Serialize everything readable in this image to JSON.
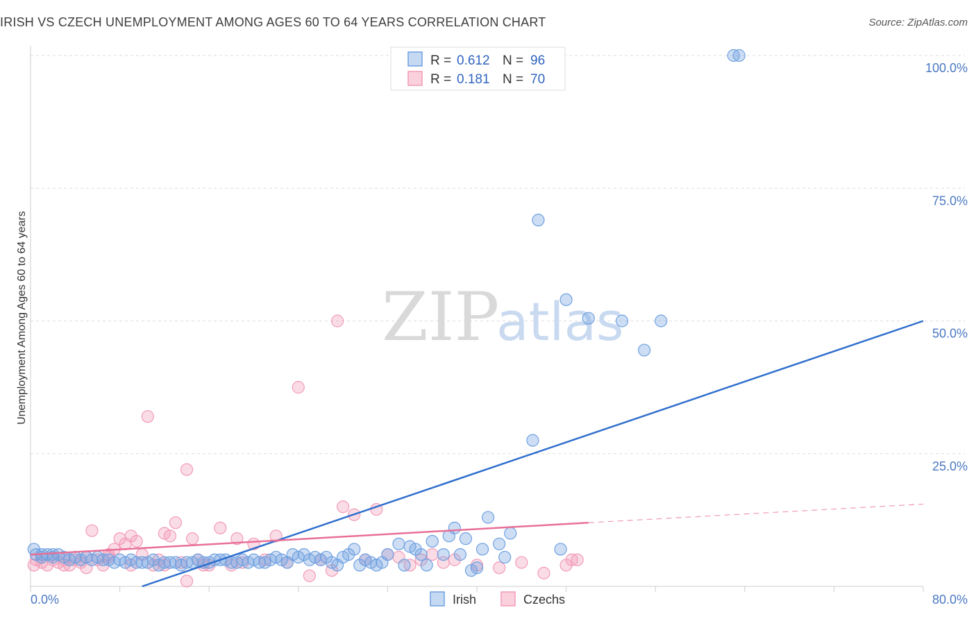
{
  "header": {
    "title": "IRISH VS CZECH UNEMPLOYMENT AMONG AGES 60 TO 64 YEARS CORRELATION CHART",
    "source": "Source: ZipAtlas.com"
  },
  "watermark": {
    "zip": "ZIP",
    "atlas": "atlas"
  },
  "colors": {
    "irish": "#6fa0e0",
    "irish_line": "#2f6fcd",
    "czech": "#f29bb6",
    "czech_line": "#e86f97",
    "axis_text": "#4a78c2"
  },
  "legend": {
    "irish": {
      "r_label": "R =",
      "r_value": "0.612",
      "n_label": "N =",
      "n_value": "96"
    },
    "czech": {
      "r_label": "R =",
      "r_value": "0.181",
      "n_label": "N =",
      "n_value": "70"
    }
  },
  "chart_data": {
    "type": "scatter",
    "title": "IRISH VS CZECH UNEMPLOYMENT AMONG AGES 60 TO 64 YEARS CORRELATION CHART",
    "xlabel": "",
    "ylabel": "Unemployment Among Ages 60 to 64 years",
    "xlim": [
      0,
      80
    ],
    "ylim": [
      0,
      100
    ],
    "x_tick_labels": [
      "0.0%",
      "80.0%"
    ],
    "y_tick_labels": [
      "25.0%",
      "50.0%",
      "75.0%",
      "100.0%"
    ],
    "y_ticks": [
      25,
      50,
      75,
      100
    ],
    "grid": true,
    "legend_position": "top-center",
    "series": [
      {
        "name": "Irish",
        "r": 0.612,
        "n": 96,
        "trend": {
          "x": [
            10,
            80
          ],
          "y": [
            0,
            50
          ]
        },
        "points": [
          [
            0.3,
            7
          ],
          [
            0.5,
            6
          ],
          [
            1,
            6
          ],
          [
            1.5,
            6
          ],
          [
            2,
            5.5
          ],
          [
            2.5,
            6
          ],
          [
            3,
            5.5
          ],
          [
            3.5,
            5
          ],
          [
            4,
            5.5
          ],
          [
            4.5,
            5
          ],
          [
            5,
            5.5
          ],
          [
            5.5,
            5
          ],
          [
            6,
            5.5
          ],
          [
            6.5,
            5
          ],
          [
            7,
            5
          ],
          [
            7.5,
            4.5
          ],
          [
            8,
            5
          ],
          [
            8.5,
            4.5
          ],
          [
            9,
            5
          ],
          [
            9.5,
            4.5
          ],
          [
            10,
            4.5
          ],
          [
            10.5,
            4.5
          ],
          [
            11,
            5
          ],
          [
            11.5,
            4
          ],
          [
            12,
            4.5
          ],
          [
            12.5,
            4.5
          ],
          [
            13,
            4.5
          ],
          [
            13.5,
            4
          ],
          [
            14,
            4.5
          ],
          [
            14.5,
            4.5
          ],
          [
            15,
            5
          ],
          [
            15.5,
            4.5
          ],
          [
            16,
            4.5
          ],
          [
            16.5,
            5
          ],
          [
            17,
            5
          ],
          [
            17.5,
            5
          ],
          [
            18,
            4.5
          ],
          [
            18.5,
            4.5
          ],
          [
            19,
            5
          ],
          [
            19.5,
            4.5
          ],
          [
            20,
            5
          ],
          [
            20.5,
            4.5
          ],
          [
            21,
            4.5
          ],
          [
            21.5,
            5
          ],
          [
            22,
            5.5
          ],
          [
            22.5,
            5
          ],
          [
            23,
            4.5
          ],
          [
            23.5,
            6
          ],
          [
            24,
            5.5
          ],
          [
            24.5,
            6
          ],
          [
            25,
            5
          ],
          [
            25.5,
            5.5
          ],
          [
            26,
            5
          ],
          [
            26.5,
            5.5
          ],
          [
            27,
            4.5
          ],
          [
            27.5,
            4
          ],
          [
            28,
            5.5
          ],
          [
            28.5,
            6
          ],
          [
            29,
            7
          ],
          [
            29.5,
            4
          ],
          [
            30,
            5
          ],
          [
            30.5,
            4.5
          ],
          [
            31,
            4
          ],
          [
            31.5,
            4.5
          ],
          [
            32,
            6
          ],
          [
            33,
            8
          ],
          [
            33.5,
            4
          ],
          [
            34,
            7.5
          ],
          [
            34.5,
            7
          ],
          [
            35,
            6
          ],
          [
            35.5,
            4
          ],
          [
            36,
            8.5
          ],
          [
            37,
            6
          ],
          [
            37.5,
            9.5
          ],
          [
            38,
            11
          ],
          [
            38.5,
            6
          ],
          [
            39,
            9
          ],
          [
            39.5,
            3
          ],
          [
            40,
            3.5
          ],
          [
            40.5,
            7
          ],
          [
            41,
            13
          ],
          [
            42,
            8
          ],
          [
            42.5,
            5.5
          ],
          [
            43,
            10
          ],
          [
            45,
            27.5
          ],
          [
            45.5,
            69
          ],
          [
            47.5,
            7
          ],
          [
            48,
            54
          ],
          [
            50,
            50.5
          ],
          [
            53,
            50
          ],
          [
            55,
            44.5
          ],
          [
            56.5,
            50
          ],
          [
            63,
            100
          ],
          [
            63.5,
            100
          ],
          [
            1,
            5.5
          ],
          [
            2,
            6
          ]
        ]
      },
      {
        "name": "Czechs",
        "r": 0.181,
        "n": 70,
        "trend": {
          "x": [
            0,
            50
          ],
          "y": [
            6,
            12
          ]
        },
        "trend_extension": {
          "x": [
            50,
            80
          ],
          "y": [
            12,
            15.5
          ]
        },
        "points": [
          [
            0.3,
            4
          ],
          [
            0.5,
            5
          ],
          [
            1,
            4.5
          ],
          [
            1.5,
            4
          ],
          [
            2,
            5
          ],
          [
            2.5,
            4.5
          ],
          [
            3,
            5
          ],
          [
            3.5,
            4
          ],
          [
            4,
            5
          ],
          [
            4.5,
            4.5
          ],
          [
            5,
            3.5
          ],
          [
            5.5,
            10.5
          ],
          [
            6,
            5
          ],
          [
            6.5,
            4
          ],
          [
            7,
            6
          ],
          [
            7.5,
            7
          ],
          [
            8,
            9
          ],
          [
            8.5,
            8
          ],
          [
            9,
            9.5
          ],
          [
            9.5,
            8.5
          ],
          [
            10,
            6
          ],
          [
            10.5,
            32
          ],
          [
            11,
            4
          ],
          [
            11.5,
            5
          ],
          [
            12,
            10
          ],
          [
            12.5,
            9.5
          ],
          [
            13,
            12
          ],
          [
            13.5,
            4.5
          ],
          [
            14,
            22
          ],
          [
            14.5,
            9
          ],
          [
            15,
            5
          ],
          [
            15.5,
            4
          ],
          [
            16,
            4
          ],
          [
            17,
            11
          ],
          [
            18,
            4
          ],
          [
            18.5,
            9
          ],
          [
            19,
            4.5
          ],
          [
            20,
            8
          ],
          [
            21,
            5
          ],
          [
            22,
            9.5
          ],
          [
            23,
            4.5
          ],
          [
            24,
            37.5
          ],
          [
            25,
            2
          ],
          [
            26,
            5
          ],
          [
            27,
            3
          ],
          [
            27.5,
            50
          ],
          [
            28,
            15
          ],
          [
            29,
            13.5
          ],
          [
            30,
            5
          ],
          [
            31,
            14.5
          ],
          [
            32,
            6
          ],
          [
            33,
            5.5
          ],
          [
            34,
            4
          ],
          [
            35,
            5
          ],
          [
            36,
            6
          ],
          [
            37,
            4.5
          ],
          [
            38,
            5
          ],
          [
            40,
            4
          ],
          [
            42,
            3.5
          ],
          [
            44,
            4.5
          ],
          [
            46,
            2.5
          ],
          [
            48,
            4
          ],
          [
            48.5,
            5
          ],
          [
            49,
            5
          ],
          [
            3,
            4
          ],
          [
            5,
            5.5
          ],
          [
            7,
            5.5
          ],
          [
            9,
            4
          ],
          [
            12,
            4
          ],
          [
            14,
            1
          ]
        ]
      }
    ]
  },
  "bottom_legend": [
    {
      "key": "irish",
      "label": "Irish"
    },
    {
      "key": "czech",
      "label": "Czechs"
    }
  ]
}
